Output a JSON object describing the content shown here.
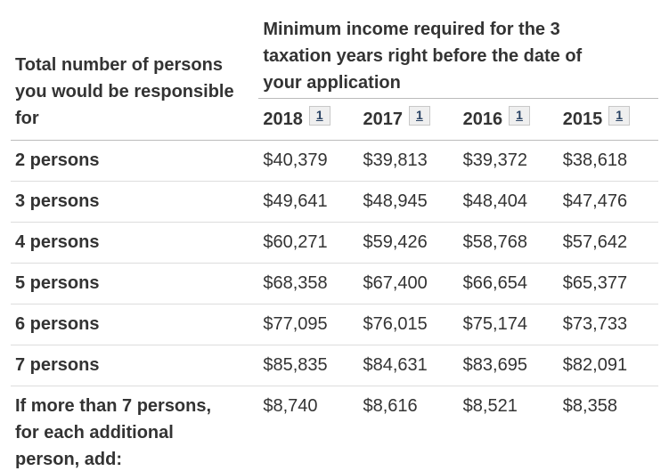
{
  "colors": {
    "background": "#ffffff",
    "text": "#333333",
    "link": "#284162",
    "header_border": "#bbbbbb",
    "row_border": "#dddddd",
    "footnote_box_bg": "#efefef",
    "footnote_box_border": "#c8c8c8"
  },
  "table": {
    "corner_header": "Total number of persons\nyou would be responsible\nfor",
    "group_header": "Minimum income required for the 3\ntaxation years right before the date of\nyour application",
    "years": [
      {
        "label": "2018",
        "footnote": "1"
      },
      {
        "label": "2017",
        "footnote": "1"
      },
      {
        "label": "2016",
        "footnote": "1"
      },
      {
        "label": "2015",
        "footnote": "1"
      }
    ],
    "rows": [
      {
        "label": "2 persons",
        "values": [
          "$40,379",
          "$39,813",
          "$39,372",
          "$38,618"
        ]
      },
      {
        "label": "3 persons",
        "values": [
          "$49,641",
          "$48,945",
          "$48,404",
          "$47,476"
        ]
      },
      {
        "label": "4 persons",
        "values": [
          "$60,271",
          "$59,426",
          "$58,768",
          "$57,642"
        ]
      },
      {
        "label": "5 persons",
        "values": [
          "$68,358",
          "$67,400",
          "$66,654",
          "$65,377"
        ]
      },
      {
        "label": "6 persons",
        "values": [
          "$77,095",
          "$76,015",
          "$75,174",
          "$73,733"
        ]
      },
      {
        "label": "7 persons",
        "values": [
          "$85,835",
          "$84,631",
          "$83,695",
          "$82,091"
        ]
      },
      {
        "label": "If more than 7 persons,\nfor each additional\nperson, add:",
        "values": [
          "$8,740",
          "$8,616",
          "$8,521",
          "$8,358"
        ]
      }
    ]
  }
}
